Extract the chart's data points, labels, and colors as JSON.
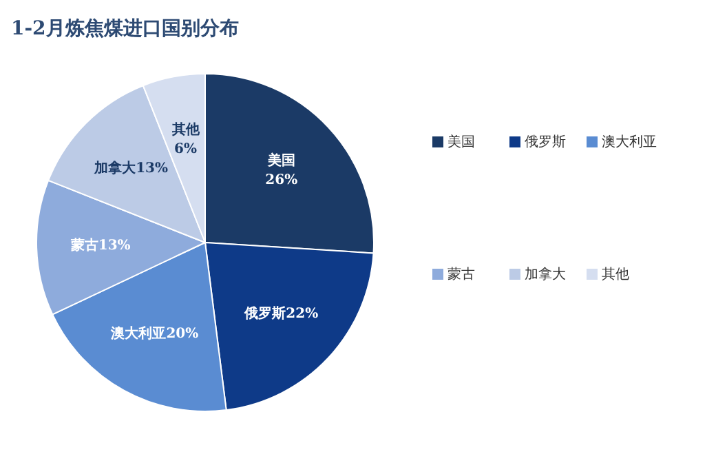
{
  "chart_data": {
    "type": "pie",
    "title": "1-2月炼焦煤进口国别分布",
    "categories": [
      "美国",
      "俄罗斯",
      "澳大利亚",
      "蒙古",
      "加拿大",
      "其他"
    ],
    "values": [
      26,
      22,
      20,
      13,
      13,
      6
    ],
    "value_labels": [
      "26%",
      "22%",
      "20%",
      "13%",
      "13%",
      "6%"
    ],
    "colors": [
      "#1b3a66",
      "#0e3a88",
      "#5a8cd2",
      "#8eabdc",
      "#bccbe6",
      "#d5def0"
    ],
    "legend": "right"
  }
}
